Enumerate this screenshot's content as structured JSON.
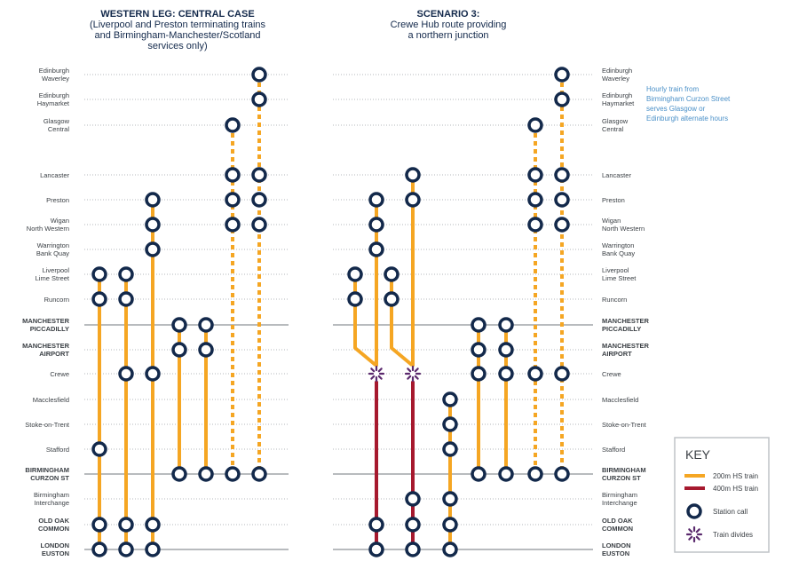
{
  "left_panel": {
    "title": "WESTERN LEG: CENTRAL CASE",
    "subtitle_lines": [
      "(Liverpool and Preston terminating trains",
      "and Birmingham-Manchester/Scotland",
      "services only)"
    ]
  },
  "right_panel": {
    "title": "SCENARIO 3:",
    "subtitle_lines": [
      "Crewe Hub route providing",
      "a northern junction"
    ]
  },
  "stations": [
    {
      "id": "edw",
      "lines": [
        "Edinburgh",
        "Waverley"
      ],
      "bold": false
    },
    {
      "id": "edh",
      "lines": [
        "Edinburgh",
        "Haymarket"
      ],
      "bold": false
    },
    {
      "id": "gla",
      "lines": [
        "Glasgow",
        "Central"
      ],
      "bold": false
    },
    {
      "id": "lan",
      "lines": [
        "Lancaster"
      ],
      "bold": false
    },
    {
      "id": "pre",
      "lines": [
        "Preston"
      ],
      "bold": false
    },
    {
      "id": "wig",
      "lines": [
        "Wigan",
        "North Western"
      ],
      "bold": false
    },
    {
      "id": "war",
      "lines": [
        "Warrington",
        "Bank Quay"
      ],
      "bold": false
    },
    {
      "id": "liv",
      "lines": [
        "Liverpool",
        "Lime Street"
      ],
      "bold": false
    },
    {
      "id": "run",
      "lines": [
        "Runcorn"
      ],
      "bold": false
    },
    {
      "id": "man",
      "lines": [
        "MANCHESTER",
        "PICCADILLY"
      ],
      "bold": true
    },
    {
      "id": "mia",
      "lines": [
        "MANCHESTER",
        "AIRPORT"
      ],
      "bold": true
    },
    {
      "id": "cre",
      "lines": [
        "Crewe"
      ],
      "bold": false
    },
    {
      "id": "mac",
      "lines": [
        "Macclesfield"
      ],
      "bold": false
    },
    {
      "id": "sot",
      "lines": [
        "Stoke-on-Trent"
      ],
      "bold": false
    },
    {
      "id": "sta",
      "lines": [
        "Stafford"
      ],
      "bold": false
    },
    {
      "id": "bcs",
      "lines": [
        "BIRMINGHAM",
        "CURZON ST"
      ],
      "bold": true
    },
    {
      "id": "bhi",
      "lines": [
        "Birmingham",
        "Interchange"
      ],
      "bold": false
    },
    {
      "id": "ooc",
      "lines": [
        "OLD OAK",
        "COMMON"
      ],
      "bold": true
    },
    {
      "id": "eus",
      "lines": [
        "LONDON",
        "EUSTON"
      ],
      "bold": true
    }
  ],
  "note_lines": [
    "Hourly train from",
    "Birmingham Curzon Street",
    "serves Glasgow or",
    "Edinburgh alternate hours"
  ],
  "key": {
    "title": "KEY",
    "items": [
      {
        "type": "line200",
        "label": "200m HS train"
      },
      {
        "type": "line400",
        "label": "400m HS train"
      },
      {
        "type": "station",
        "label": "Station call"
      },
      {
        "type": "divide",
        "label": "Train divides"
      }
    ]
  },
  "colors": {
    "orange": "#F5A623",
    "red": "#A6192E",
    "navy": "#13294B",
    "purple": "#5B2A6E",
    "note": "#4A90C8"
  }
}
